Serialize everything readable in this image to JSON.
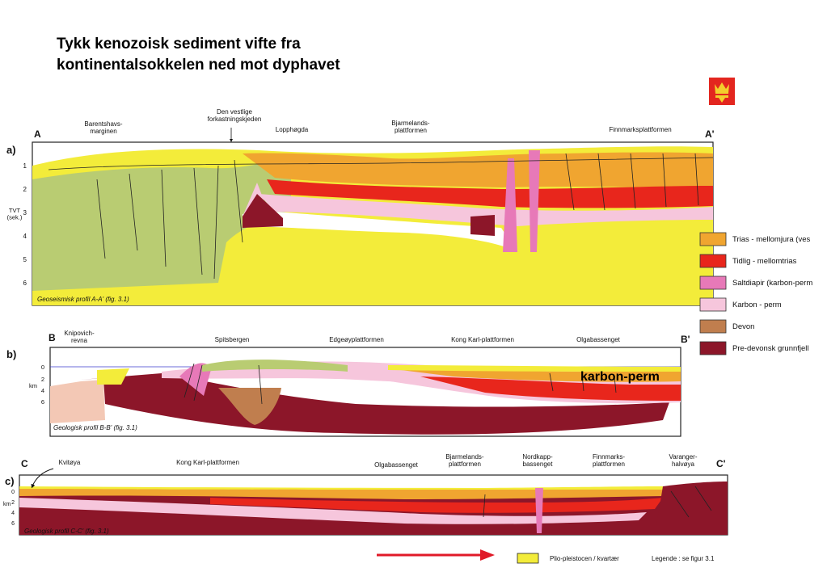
{
  "title": {
    "line1": "Tykk kenozoisk sediment vifte fra",
    "line2": "kontinentalsokkelen ned mot dyphavet"
  },
  "colors": {
    "trias": "#f0a530",
    "tidlig": "#e8261c",
    "salt": "#e779b8",
    "karbon": "#f6c6dc",
    "devon": "#c07e4e",
    "predevon": "#8c1629",
    "plio": "#f3ec3a",
    "green": "#b9cc72",
    "arrow": "#e01a28"
  },
  "profileA": {
    "label": "a)",
    "left": "A",
    "right": "A'",
    "places": [
      "Barentshavs-\nmarginen",
      "Den vestlige\nforkastningskjeden",
      "Lopphøgda",
      "Bjarmelands-\nplattformen",
      "Finnmarksplattformen"
    ],
    "axis_title": "TVT\n(sek.)",
    "ticks": [
      "1",
      "2",
      "3",
      "4",
      "5",
      "6"
    ],
    "caption": "Geoseismisk profil A-A' (fig. 3.1)"
  },
  "profileB": {
    "label": "b)",
    "left": "B",
    "right": "B'",
    "places": [
      "Knipovich-\nrevna",
      "Spitsbergen",
      "Edgeøyplattformen",
      "Kong Karl-plattformen",
      "Olgabassenget"
    ],
    "axis_title": "km",
    "ticks": [
      "0",
      "2",
      "4",
      "6"
    ],
    "caption": "Geologisk profil B-B' (fig. 3.1)"
  },
  "profileC": {
    "label": "c)",
    "left": "C",
    "right": "C'",
    "places": [
      "Kvitøya",
      "Kong Karl-plattformen",
      "Olgabassenget",
      "Bjarmelands-\nplattformen",
      "Nordkapp-\nbassenget",
      "Finnmarks-\nplattformen",
      "Varanger-\nhalvøya"
    ],
    "axis_title": "km",
    "ticks": [
      "0",
      "2",
      "4",
      "6"
    ],
    "caption": "Geologisk profil C-C' (fig. 3.1)"
  },
  "legend": [
    {
      "label": "Trias - mellomjura (ves",
      "color": "#f0a530"
    },
    {
      "label": "Tidlig - mellomtrias",
      "color": "#e8261c"
    },
    {
      "label": "Saltdiapir (karbon-perm",
      "color": "#e779b8"
    },
    {
      "label": "Karbon - perm",
      "color": "#f6c6dc"
    },
    {
      "label": "Devon",
      "color": "#c07e4e"
    },
    {
      "label": "Pre-devonsk grunnfjell",
      "color": "#8c1629"
    }
  ],
  "overlay_label": "karbon-perm",
  "bottom_legend": {
    "plio_label": "Plio-pleistocen / kvartær",
    "note": "Legende : se figur 3.1"
  }
}
